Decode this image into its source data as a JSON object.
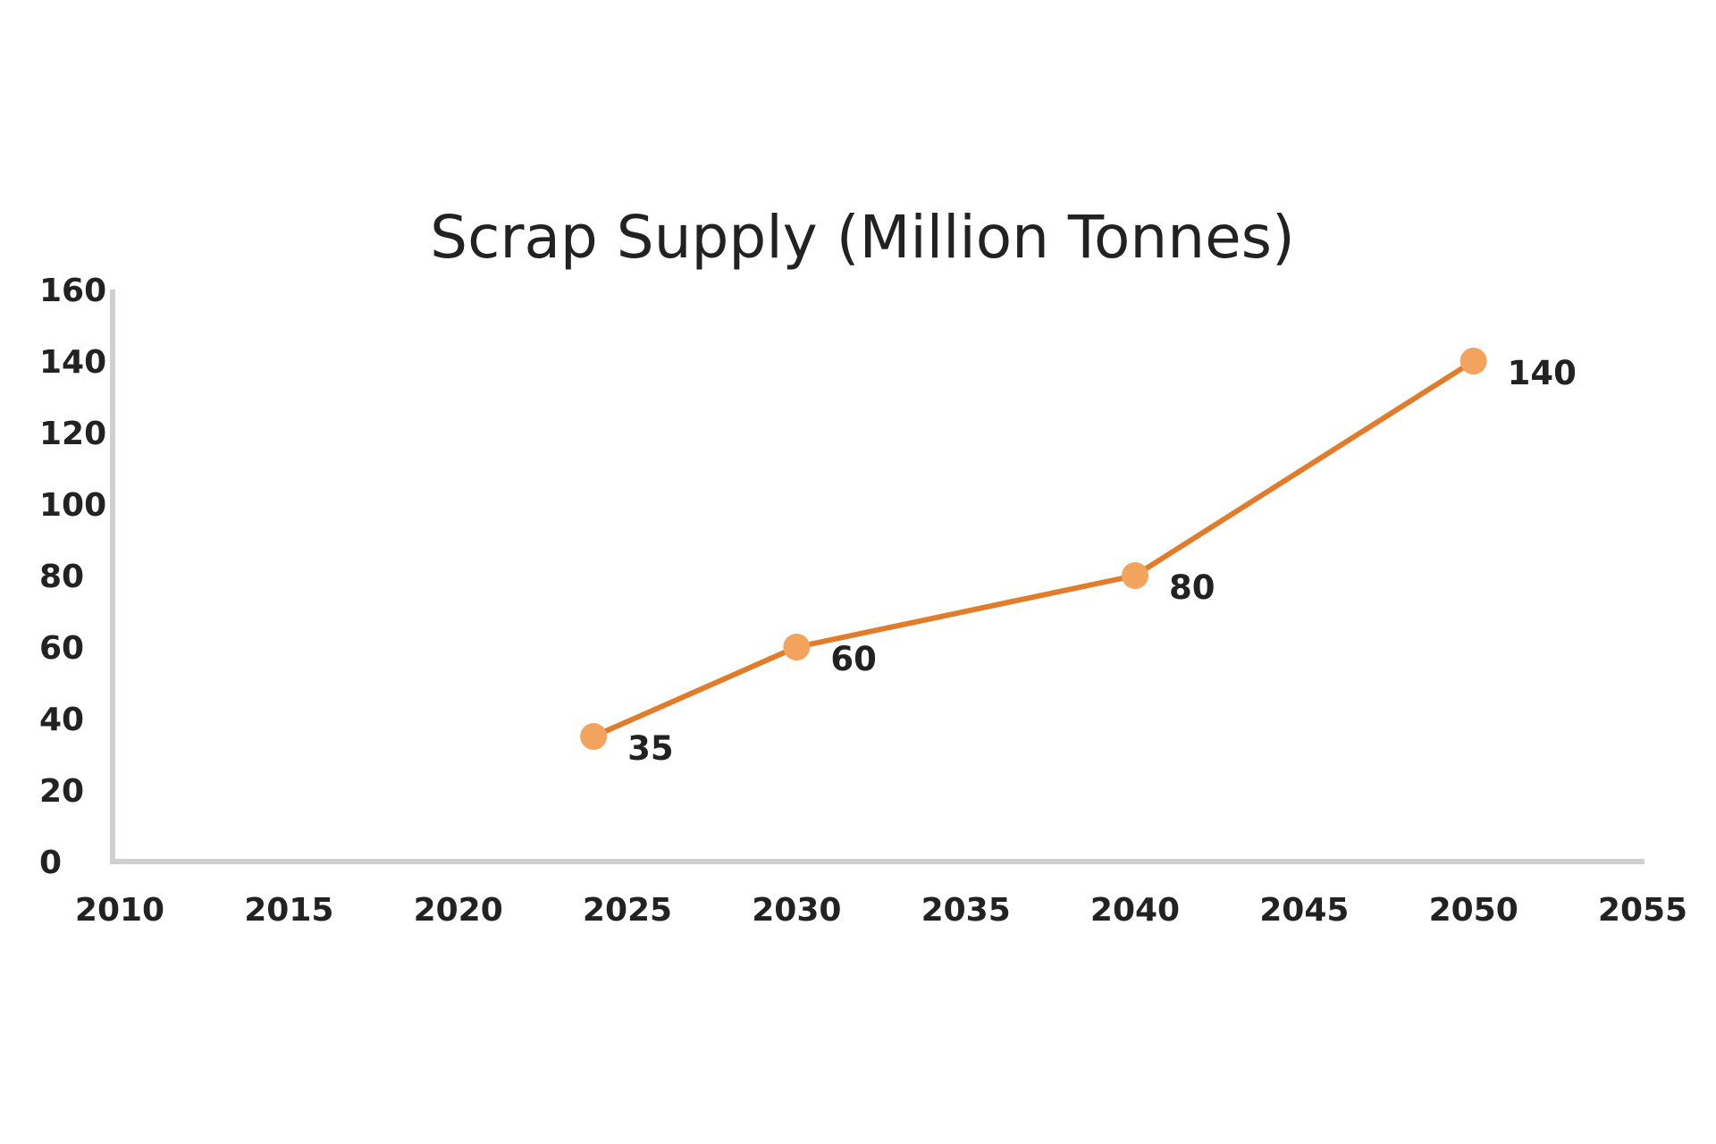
{
  "chart_data": {
    "type": "line",
    "title": "Scrap Supply (Million Tonnes)",
    "xlabel": "",
    "ylabel": "",
    "xlim": [
      2010,
      2055
    ],
    "ylim": [
      0,
      160
    ],
    "x_ticks": [
      2010,
      2015,
      2020,
      2025,
      2030,
      2035,
      2040,
      2045,
      2050,
      2055
    ],
    "y_ticks": [
      0,
      20,
      40,
      60,
      80,
      100,
      120,
      140,
      160
    ],
    "grid": false,
    "series": [
      {
        "name": "Scrap Supply",
        "x": [
          2024,
          2030,
          2040,
          2050
        ],
        "values": [
          35,
          60,
          80,
          140
        ],
        "data_labels": [
          "35",
          "60",
          "80",
          "140"
        ]
      }
    ],
    "colors": {
      "line": "#E07C2A",
      "marker": "#F2A45E",
      "axis": "#CFCFCF",
      "text": "#222222"
    }
  }
}
